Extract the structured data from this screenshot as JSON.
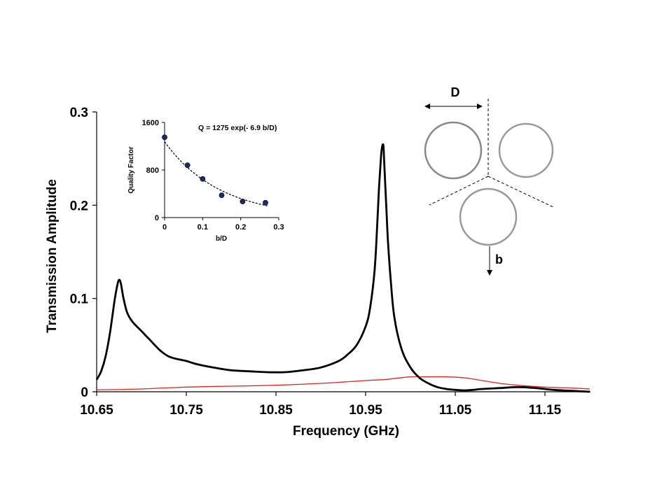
{
  "chart_data": {
    "type": "line",
    "xlabel": "Frequency (GHz)",
    "ylabel": "Transmission Amplitude",
    "xlim": [
      10.65,
      11.2
    ],
    "ylim": [
      0,
      0.3
    ],
    "x_ticks": [
      10.65,
      10.75,
      10.85,
      10.95,
      11.05,
      11.15
    ],
    "x_tick_labels": [
      "10.65",
      "10.75",
      "10.85",
      "10.95",
      "11.05",
      "11.15"
    ],
    "y_ticks": [
      0,
      0.1,
      0.2,
      0.3
    ],
    "y_tick_labels": [
      "0",
      "0.1",
      "0.2",
      "0.3"
    ],
    "series": [
      {
        "name": "black",
        "color": "#000000",
        "x": [
          10.65,
          10.655,
          10.66,
          10.665,
          10.67,
          10.673,
          10.675,
          10.677,
          10.68,
          10.684,
          10.69,
          10.7,
          10.71,
          10.72,
          10.73,
          10.74,
          10.75,
          10.76,
          10.78,
          10.8,
          10.82,
          10.84,
          10.86,
          10.88,
          10.9,
          10.92,
          10.93,
          10.94,
          10.95,
          10.955,
          10.96,
          10.963,
          10.965,
          10.967,
          10.968,
          10.969,
          10.97,
          10.971,
          10.973,
          10.975,
          10.978,
          10.982,
          10.99,
          11.0,
          11.01,
          11.02,
          11.03,
          11.04,
          11.05,
          11.06,
          11.07,
          11.08,
          11.1,
          11.12,
          11.14,
          11.16,
          11.18,
          11.2
        ],
        "y": [
          0.013,
          0.022,
          0.038,
          0.064,
          0.098,
          0.114,
          0.12,
          0.116,
          0.1,
          0.085,
          0.075,
          0.065,
          0.055,
          0.045,
          0.038,
          0.035,
          0.033,
          0.03,
          0.026,
          0.023,
          0.022,
          0.021,
          0.021,
          0.023,
          0.026,
          0.033,
          0.04,
          0.05,
          0.07,
          0.09,
          0.13,
          0.18,
          0.22,
          0.25,
          0.26,
          0.265,
          0.262,
          0.24,
          0.2,
          0.16,
          0.12,
          0.08,
          0.046,
          0.026,
          0.015,
          0.009,
          0.005,
          0.003,
          0.002,
          0.0015,
          0.002,
          0.003,
          0.004,
          0.005,
          0.004,
          0.002,
          0.001,
          0.0
        ]
      },
      {
        "name": "red",
        "color": "#e0231b",
        "x": [
          10.65,
          10.7,
          10.75,
          10.8,
          10.85,
          10.9,
          10.95,
          10.97,
          10.98,
          11.0,
          11.02,
          11.04,
          11.06,
          11.08,
          11.1,
          11.12,
          11.15,
          11.18,
          11.2
        ],
        "y": [
          0.002,
          0.003,
          0.005,
          0.006,
          0.007,
          0.009,
          0.012,
          0.013,
          0.014,
          0.016,
          0.016,
          0.016,
          0.015,
          0.012,
          0.009,
          0.007,
          0.005,
          0.004,
          0.003
        ]
      }
    ],
    "inset": {
      "type": "scatter",
      "xlabel": "b/D",
      "ylabel": "Quality Factor",
      "annotation": "Q = 1275 exp(- 6.9 b/D)",
      "xlim": [
        0,
        0.3
      ],
      "ylim": [
        0,
        1600
      ],
      "x_tick_labels": [
        "0",
        "0.1",
        "0.2",
        "0.3"
      ],
      "y_tick_labels": [
        "0",
        "800",
        "1600"
      ],
      "points": {
        "x": [
          0,
          0.06,
          0.1,
          0.15,
          0.205,
          0.265
        ],
        "y": [
          1350,
          880,
          650,
          375,
          270,
          250
        ]
      },
      "fit": {
        "a": 1275,
        "k": 6.9
      },
      "point_color": "#1a2a6c"
    },
    "schematic": {
      "labels": {
        "diameter": "D",
        "offset": "b"
      }
    }
  }
}
